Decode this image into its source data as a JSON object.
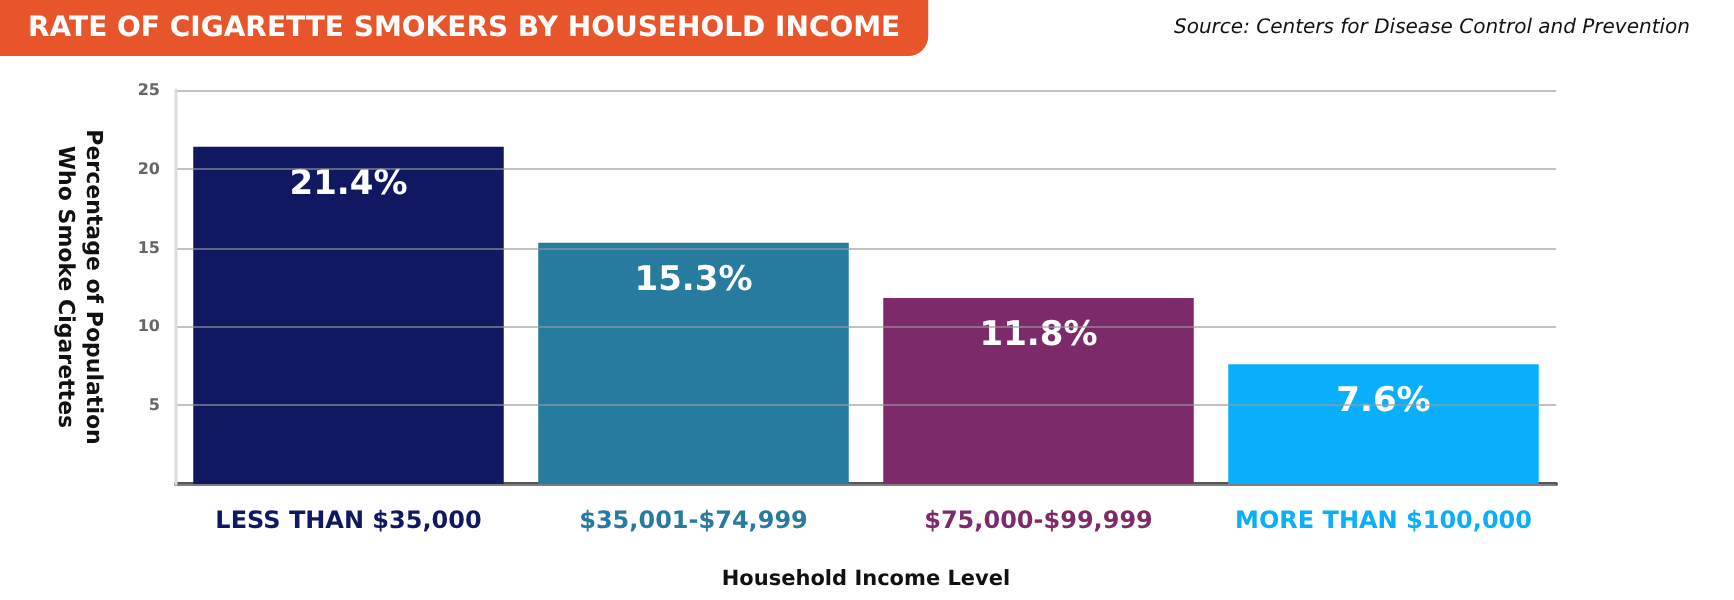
{
  "chart_data": {
    "type": "bar",
    "title": "RATE OF CIGARETTE SMOKERS BY HOUSEHOLD INCOME",
    "annotations": [
      "Source: Centers for Disease Control and Prevention"
    ],
    "xlabel": "Household Income Level",
    "ylabel": "Percentage of Population Who Smoke Cigarettes",
    "categories": [
      "LESS THAN $35,000",
      "$35,001-$74,999",
      "$75,000-$99,999",
      "MORE THAN $100,000"
    ],
    "values": [
      21.4,
      15.3,
      11.8,
      7.6
    ],
    "colors": [
      "#111862",
      "#267b9e",
      "#7d2a6b",
      "#0aaffc"
    ],
    "value_labels": [
      "21.4%",
      "15.3%",
      "11.8%",
      "7.6%"
    ],
    "ylim": [
      0,
      25
    ],
    "yticks": [
      {
        "value": 0,
        "label": null
      },
      5,
      10,
      15,
      20,
      25
    ],
    "grid": "y"
  }
}
